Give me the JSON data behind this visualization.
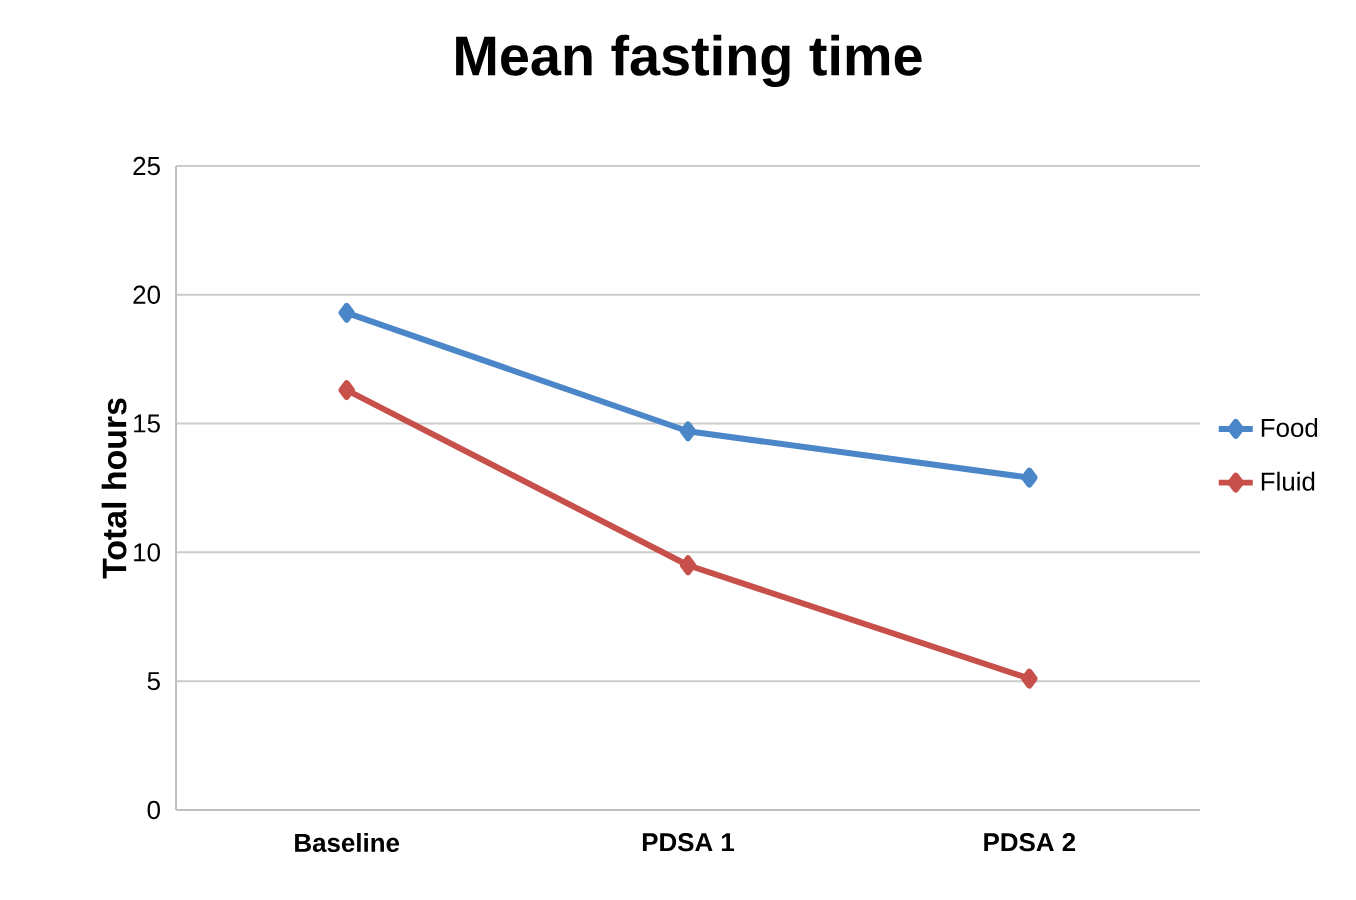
{
  "chart_data": {
    "type": "line",
    "title": "Mean fasting time",
    "ylabel": "Total hours",
    "categories": [
      "Baseline",
      "PDSA 1",
      "PDSA 2"
    ],
    "series": [
      {
        "name": "Food",
        "color": "#4a86c8",
        "values": [
          19.3,
          14.7,
          12.9
        ]
      },
      {
        "name": "Fluid",
        "color": "#c8504b",
        "values": [
          16.3,
          9.5,
          5.1
        ]
      }
    ],
    "ylim": [
      0,
      25
    ],
    "yticks": [
      0,
      5,
      10,
      15,
      20,
      25
    ],
    "grid": "y",
    "legend": "right",
    "marker": "diamond",
    "line_style": "solid"
  }
}
